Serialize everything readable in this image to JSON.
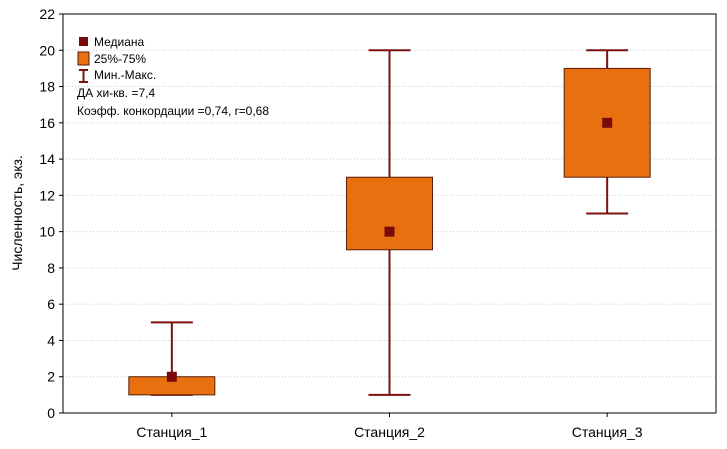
{
  "colors": {
    "box_fill": "#E8700E",
    "box_stroke": "#5A1E0A",
    "whisker": "#7A1010",
    "median": "#7A0A0A",
    "grid": "#CCCCCC",
    "axis": "#000000"
  },
  "chart_data": {
    "type": "box",
    "title": "",
    "xlabel": "",
    "ylabel": "Численность, экз.",
    "ylim": [
      0,
      22
    ],
    "yticks": [
      0,
      2,
      4,
      6,
      8,
      10,
      12,
      14,
      16,
      18,
      20,
      22
    ],
    "grid": "horizontal-dotted",
    "legend_placement": "top-left",
    "categories": [
      "Станция_1",
      "Станция_2",
      "Станция_3"
    ],
    "series": [
      {
        "category": "Станция_1",
        "min": 1,
        "q1": 1,
        "median": 2,
        "q3": 2,
        "max": 5
      },
      {
        "category": "Станция_2",
        "min": 1,
        "q1": 9,
        "median": 10,
        "q3": 13,
        "max": 20
      },
      {
        "category": "Станция_3",
        "min": 11,
        "q1": 13,
        "median": 16,
        "q3": 19,
        "max": 20
      }
    ],
    "legend": {
      "median_label": "Медиана",
      "box_label": "25%-75%",
      "whisker_label": "Мин.-Макс.",
      "annotations": [
        "ДА хи-кв. =7,4",
        "Коэфф. конкордации =0,74, r=0,68"
      ]
    }
  }
}
